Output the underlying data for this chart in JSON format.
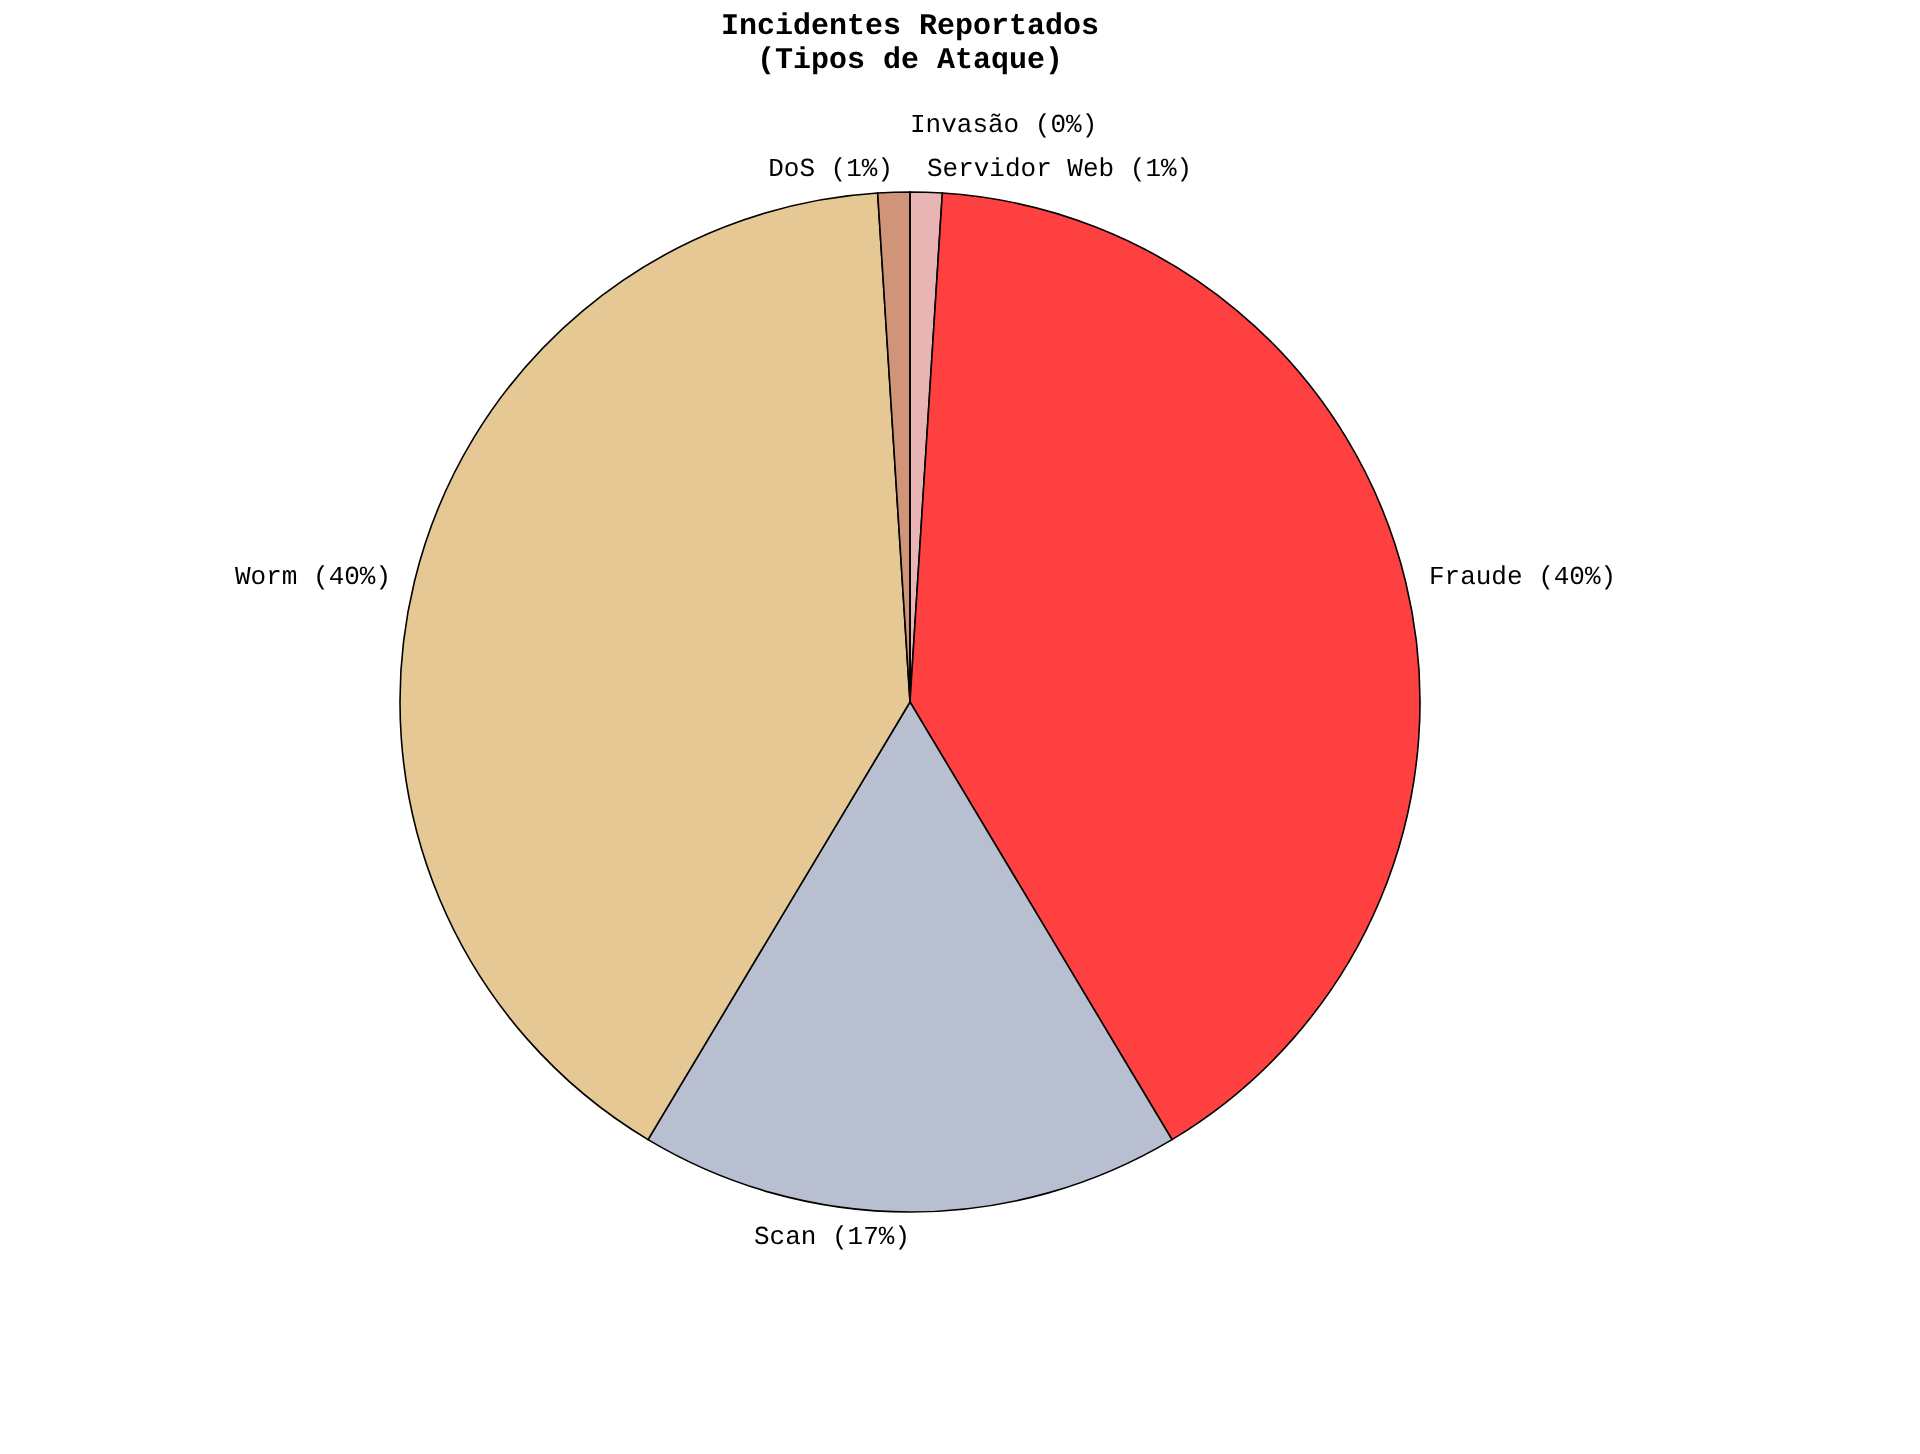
{
  "chart_data": {
    "type": "pie",
    "title": "Incidentes Reportados\n(Tipos de Ataque)",
    "categories": [
      "Servidor Web (1%)",
      "Fraude (40%)",
      "Scan (17%)",
      "Worm (40%)",
      "DoS (1%)",
      "Invasão (0%)"
    ],
    "values": [
      1,
      40,
      17,
      40,
      1,
      0
    ],
    "colors": [
      "#e8b4b4",
      "#ff4040",
      "#b8bfd0",
      "#e5c894",
      "#d09478",
      "#303060"
    ],
    "legend": false
  }
}
